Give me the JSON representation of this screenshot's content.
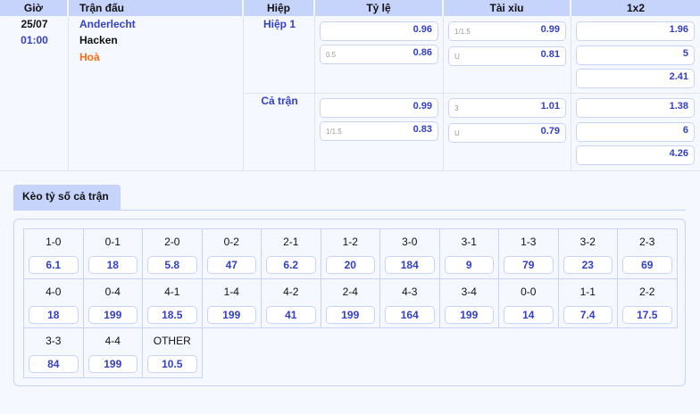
{
  "headers": {
    "time": "Giờ",
    "match": "Trận đấu",
    "half": "Hiệp",
    "handicap": "Tỷ lệ",
    "overunder": "Tài xỉu",
    "x12": "1x2"
  },
  "match": {
    "date": "25/07",
    "time": "01:00",
    "home": "Anderlecht",
    "away": "Hacken",
    "draw": "Hoà"
  },
  "periods": [
    {
      "label": "Hiệp 1",
      "handicap": [
        {
          "line": "",
          "odds": "0.96"
        },
        {
          "line": "0.5",
          "odds": "0.86"
        }
      ],
      "overunder": [
        {
          "line": "1/1.5",
          "odds": "0.99"
        },
        {
          "line": "U",
          "odds": "0.81"
        }
      ],
      "x12": [
        "1.96",
        "5",
        "2.41"
      ]
    },
    {
      "label": "Cả trận",
      "handicap": [
        {
          "line": "",
          "odds": "0.99"
        },
        {
          "line": "1/1.5",
          "odds": "0.83"
        }
      ],
      "overunder": [
        {
          "line": "3",
          "odds": "1.01"
        },
        {
          "line": "U",
          "odds": "0.79"
        }
      ],
      "x12": [
        "1.38",
        "6",
        "4.26"
      ]
    }
  ],
  "scores_tab": "Kèo tỷ số cả trận",
  "scores": [
    {
      "s": "1-0",
      "o": "6.1"
    },
    {
      "s": "0-1",
      "o": "18"
    },
    {
      "s": "2-0",
      "o": "5.8"
    },
    {
      "s": "0-2",
      "o": "47"
    },
    {
      "s": "2-1",
      "o": "6.2"
    },
    {
      "s": "1-2",
      "o": "20"
    },
    {
      "s": "3-0",
      "o": "184"
    },
    {
      "s": "3-1",
      "o": "9"
    },
    {
      "s": "1-3",
      "o": "79"
    },
    {
      "s": "3-2",
      "o": "23"
    },
    {
      "s": "2-3",
      "o": "69"
    },
    {
      "s": "4-0",
      "o": "18"
    },
    {
      "s": "0-4",
      "o": "199"
    },
    {
      "s": "4-1",
      "o": "18.5"
    },
    {
      "s": "1-4",
      "o": "199"
    },
    {
      "s": "4-2",
      "o": "41"
    },
    {
      "s": "2-4",
      "o": "199"
    },
    {
      "s": "4-3",
      "o": "164"
    },
    {
      "s": "3-4",
      "o": "199"
    },
    {
      "s": "0-0",
      "o": "14"
    },
    {
      "s": "1-1",
      "o": "7.4"
    },
    {
      "s": "2-2",
      "o": "17.5"
    },
    {
      "s": "3-3",
      "o": "84"
    },
    {
      "s": "4-4",
      "o": "199"
    },
    {
      "s": "OTHER",
      "o": "10.5"
    }
  ],
  "colors": {
    "header": "#c6d3fb",
    "accent": "#3340c8",
    "draw": "#ff6a13",
    "background": "#f5f8ff"
  }
}
